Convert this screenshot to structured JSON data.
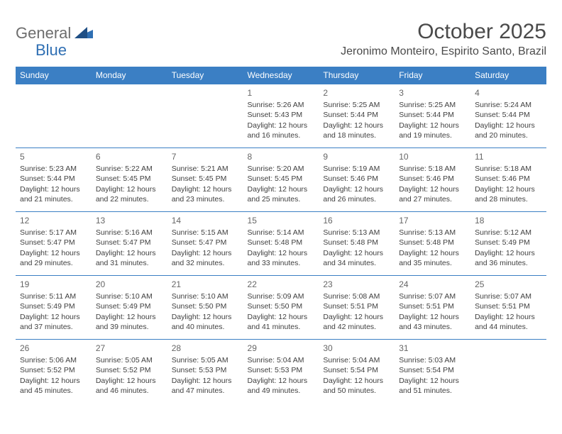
{
  "logo": {
    "word1": "General",
    "word2": "Blue"
  },
  "title": "October 2025",
  "subtitle": "Jeronimo Monteiro, Espirito Santo, Brazil",
  "colors": {
    "header_bg": "#3b7fc4",
    "header_fg": "#ffffff",
    "cell_border": "#3b7fc4",
    "text": "#3f3f3f",
    "daynum": "#666666",
    "logo_gray": "#6d6d6d",
    "logo_blue": "#2f6fb3",
    "page_bg": "#ffffff"
  },
  "typography": {
    "title_fontsize": 30,
    "subtitle_fontsize": 16,
    "dayheader_fontsize": 12,
    "cell_fontsize": 10.5,
    "daynum_fontsize": 12
  },
  "day_headers": [
    "Sunday",
    "Monday",
    "Tuesday",
    "Wednesday",
    "Thursday",
    "Friday",
    "Saturday"
  ],
  "weeks": [
    [
      null,
      null,
      null,
      {
        "n": "1",
        "l1": "Sunrise: 5:26 AM",
        "l2": "Sunset: 5:43 PM",
        "l3": "Daylight: 12 hours",
        "l4": "and 16 minutes."
      },
      {
        "n": "2",
        "l1": "Sunrise: 5:25 AM",
        "l2": "Sunset: 5:44 PM",
        "l3": "Daylight: 12 hours",
        "l4": "and 18 minutes."
      },
      {
        "n": "3",
        "l1": "Sunrise: 5:25 AM",
        "l2": "Sunset: 5:44 PM",
        "l3": "Daylight: 12 hours",
        "l4": "and 19 minutes."
      },
      {
        "n": "4",
        "l1": "Sunrise: 5:24 AM",
        "l2": "Sunset: 5:44 PM",
        "l3": "Daylight: 12 hours",
        "l4": "and 20 minutes."
      }
    ],
    [
      {
        "n": "5",
        "l1": "Sunrise: 5:23 AM",
        "l2": "Sunset: 5:44 PM",
        "l3": "Daylight: 12 hours",
        "l4": "and 21 minutes."
      },
      {
        "n": "6",
        "l1": "Sunrise: 5:22 AM",
        "l2": "Sunset: 5:45 PM",
        "l3": "Daylight: 12 hours",
        "l4": "and 22 minutes."
      },
      {
        "n": "7",
        "l1": "Sunrise: 5:21 AM",
        "l2": "Sunset: 5:45 PM",
        "l3": "Daylight: 12 hours",
        "l4": "and 23 minutes."
      },
      {
        "n": "8",
        "l1": "Sunrise: 5:20 AM",
        "l2": "Sunset: 5:45 PM",
        "l3": "Daylight: 12 hours",
        "l4": "and 25 minutes."
      },
      {
        "n": "9",
        "l1": "Sunrise: 5:19 AM",
        "l2": "Sunset: 5:46 PM",
        "l3": "Daylight: 12 hours",
        "l4": "and 26 minutes."
      },
      {
        "n": "10",
        "l1": "Sunrise: 5:18 AM",
        "l2": "Sunset: 5:46 PM",
        "l3": "Daylight: 12 hours",
        "l4": "and 27 minutes."
      },
      {
        "n": "11",
        "l1": "Sunrise: 5:18 AM",
        "l2": "Sunset: 5:46 PM",
        "l3": "Daylight: 12 hours",
        "l4": "and 28 minutes."
      }
    ],
    [
      {
        "n": "12",
        "l1": "Sunrise: 5:17 AM",
        "l2": "Sunset: 5:47 PM",
        "l3": "Daylight: 12 hours",
        "l4": "and 29 minutes."
      },
      {
        "n": "13",
        "l1": "Sunrise: 5:16 AM",
        "l2": "Sunset: 5:47 PM",
        "l3": "Daylight: 12 hours",
        "l4": "and 31 minutes."
      },
      {
        "n": "14",
        "l1": "Sunrise: 5:15 AM",
        "l2": "Sunset: 5:47 PM",
        "l3": "Daylight: 12 hours",
        "l4": "and 32 minutes."
      },
      {
        "n": "15",
        "l1": "Sunrise: 5:14 AM",
        "l2": "Sunset: 5:48 PM",
        "l3": "Daylight: 12 hours",
        "l4": "and 33 minutes."
      },
      {
        "n": "16",
        "l1": "Sunrise: 5:13 AM",
        "l2": "Sunset: 5:48 PM",
        "l3": "Daylight: 12 hours",
        "l4": "and 34 minutes."
      },
      {
        "n": "17",
        "l1": "Sunrise: 5:13 AM",
        "l2": "Sunset: 5:48 PM",
        "l3": "Daylight: 12 hours",
        "l4": "and 35 minutes."
      },
      {
        "n": "18",
        "l1": "Sunrise: 5:12 AM",
        "l2": "Sunset: 5:49 PM",
        "l3": "Daylight: 12 hours",
        "l4": "and 36 minutes."
      }
    ],
    [
      {
        "n": "19",
        "l1": "Sunrise: 5:11 AM",
        "l2": "Sunset: 5:49 PM",
        "l3": "Daylight: 12 hours",
        "l4": "and 37 minutes."
      },
      {
        "n": "20",
        "l1": "Sunrise: 5:10 AM",
        "l2": "Sunset: 5:49 PM",
        "l3": "Daylight: 12 hours",
        "l4": "and 39 minutes."
      },
      {
        "n": "21",
        "l1": "Sunrise: 5:10 AM",
        "l2": "Sunset: 5:50 PM",
        "l3": "Daylight: 12 hours",
        "l4": "and 40 minutes."
      },
      {
        "n": "22",
        "l1": "Sunrise: 5:09 AM",
        "l2": "Sunset: 5:50 PM",
        "l3": "Daylight: 12 hours",
        "l4": "and 41 minutes."
      },
      {
        "n": "23",
        "l1": "Sunrise: 5:08 AM",
        "l2": "Sunset: 5:51 PM",
        "l3": "Daylight: 12 hours",
        "l4": "and 42 minutes."
      },
      {
        "n": "24",
        "l1": "Sunrise: 5:07 AM",
        "l2": "Sunset: 5:51 PM",
        "l3": "Daylight: 12 hours",
        "l4": "and 43 minutes."
      },
      {
        "n": "25",
        "l1": "Sunrise: 5:07 AM",
        "l2": "Sunset: 5:51 PM",
        "l3": "Daylight: 12 hours",
        "l4": "and 44 minutes."
      }
    ],
    [
      {
        "n": "26",
        "l1": "Sunrise: 5:06 AM",
        "l2": "Sunset: 5:52 PM",
        "l3": "Daylight: 12 hours",
        "l4": "and 45 minutes."
      },
      {
        "n": "27",
        "l1": "Sunrise: 5:05 AM",
        "l2": "Sunset: 5:52 PM",
        "l3": "Daylight: 12 hours",
        "l4": "and 46 minutes."
      },
      {
        "n": "28",
        "l1": "Sunrise: 5:05 AM",
        "l2": "Sunset: 5:53 PM",
        "l3": "Daylight: 12 hours",
        "l4": "and 47 minutes."
      },
      {
        "n": "29",
        "l1": "Sunrise: 5:04 AM",
        "l2": "Sunset: 5:53 PM",
        "l3": "Daylight: 12 hours",
        "l4": "and 49 minutes."
      },
      {
        "n": "30",
        "l1": "Sunrise: 5:04 AM",
        "l2": "Sunset: 5:54 PM",
        "l3": "Daylight: 12 hours",
        "l4": "and 50 minutes."
      },
      {
        "n": "31",
        "l1": "Sunrise: 5:03 AM",
        "l2": "Sunset: 5:54 PM",
        "l3": "Daylight: 12 hours",
        "l4": "and 51 minutes."
      },
      null
    ]
  ]
}
